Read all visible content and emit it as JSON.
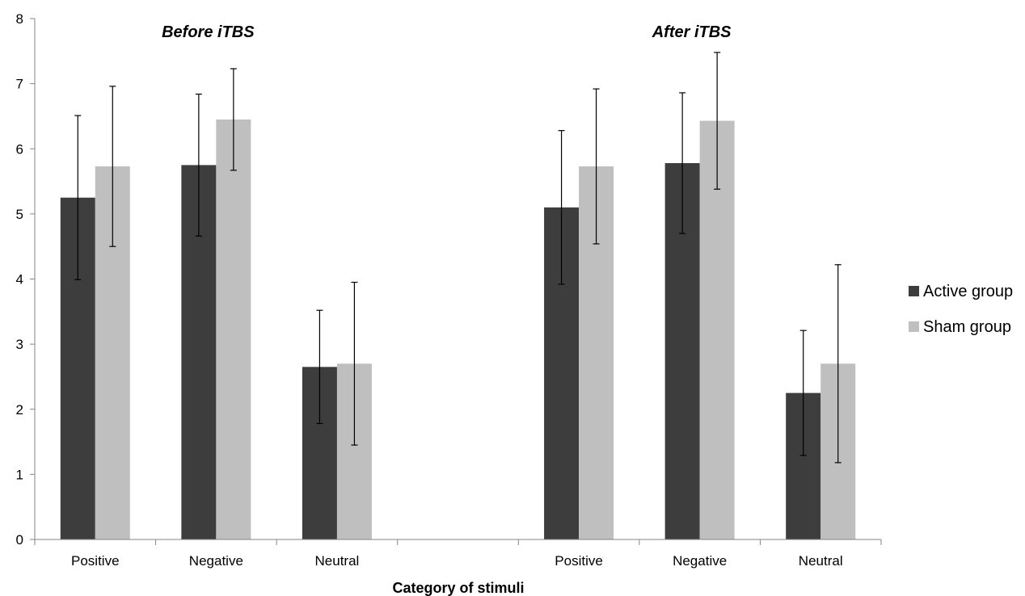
{
  "chart_data": {
    "type": "bar",
    "title": "",
    "xlabel": "Category of stimuli",
    "ylabel": "",
    "ylim": [
      0,
      8
    ],
    "yticks": [
      0,
      1,
      2,
      3,
      4,
      5,
      6,
      7,
      8
    ],
    "grid": false,
    "legend": "right",
    "groups": [
      {
        "label": "Before iTBS",
        "categories": [
          "Positive",
          "Negative",
          "Neutral"
        ],
        "series": [
          {
            "name": "Active group",
            "color": "#3d3d3d",
            "values": [
              5.25,
              5.75,
              2.65
            ],
            "error": [
              1.26,
              1.09,
              0.87
            ]
          },
          {
            "name": "Sham group",
            "color": "#bfbfbf",
            "values": [
              5.73,
              6.45,
              2.7
            ],
            "error": [
              1.23,
              0.78,
              1.25
            ]
          }
        ]
      },
      {
        "label": "After iTBS",
        "categories": [
          "Positive",
          "Negative",
          "Neutral"
        ],
        "series": [
          {
            "name": "Active group",
            "color": "#3d3d3d",
            "values": [
              5.1,
              5.78,
              2.25
            ],
            "error": [
              1.18,
              1.08,
              0.96
            ]
          },
          {
            "name": "Sham group",
            "color": "#bfbfbf",
            "values": [
              5.73,
              6.43,
              2.7
            ],
            "error": [
              1.19,
              1.05,
              1.52
            ]
          }
        ]
      }
    ],
    "legend_entries": [
      {
        "name": "Active group",
        "color": "#3d3d3d"
      },
      {
        "name": "Sham group",
        "color": "#bfbfbf"
      }
    ]
  }
}
